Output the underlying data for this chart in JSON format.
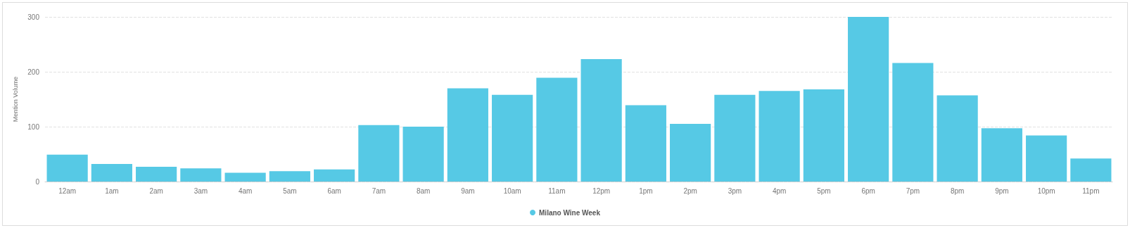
{
  "chart_data": {
    "type": "bar",
    "ylabel": "Mention Volume",
    "categories": [
      "12am",
      "1am",
      "2am",
      "3am",
      "4am",
      "5am",
      "6am",
      "7am",
      "8am",
      "9am",
      "10am",
      "11am",
      "12pm",
      "1pm",
      "2pm",
      "3pm",
      "4pm",
      "5pm",
      "6pm",
      "7pm",
      "8pm",
      "9pm",
      "10pm",
      "11pm"
    ],
    "series": [
      {
        "name": "Milano Wine Week",
        "color": "#56c9e5",
        "values": [
          49,
          32,
          27,
          24,
          16,
          19,
          22,
          103,
          100,
          170,
          158,
          189,
          223,
          139,
          105,
          158,
          165,
          168,
          300,
          216,
          157,
          97,
          84,
          42
        ]
      }
    ],
    "ylim": [
      0,
      300
    ],
    "yticks": [
      0,
      100,
      200,
      300
    ],
    "grid": "y",
    "legend": "bottom"
  }
}
